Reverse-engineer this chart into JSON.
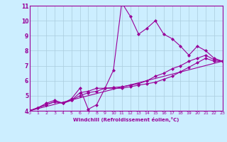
{
  "background_color": "#cceeff",
  "grid_color": "#aaccdd",
  "line_color": "#990099",
  "marker": "D",
  "markersize": 2,
  "linewidth": 0.8,
  "xlabel": "Windchill (Refroidissement éolien,°C)",
  "xlim": [
    0,
    23
  ],
  "ylim": [
    4,
    11
  ],
  "yticks": [
    4,
    5,
    6,
    7,
    8,
    9,
    10,
    11
  ],
  "xticks": [
    0,
    1,
    2,
    3,
    4,
    5,
    6,
    7,
    8,
    9,
    10,
    11,
    12,
    13,
    14,
    15,
    16,
    17,
    18,
    19,
    20,
    21,
    22,
    23
  ],
  "series": [
    {
      "x": [
        0,
        1,
        2,
        3,
        4,
        5,
        6,
        7,
        8,
        9,
        10,
        11,
        12,
        13,
        14,
        15,
        16,
        17,
        18,
        19,
        20,
        21,
        22,
        23
      ],
      "y": [
        4.0,
        4.2,
        4.5,
        4.7,
        4.5,
        4.8,
        5.5,
        4.1,
        4.4,
        5.5,
        6.7,
        11.2,
        10.3,
        9.1,
        9.5,
        10.0,
        9.1,
        8.8,
        8.3,
        7.7,
        8.3,
        8.0,
        7.5,
        7.3
      ]
    },
    {
      "x": [
        0,
        1,
        2,
        3,
        4,
        5,
        6,
        7,
        8,
        9,
        10,
        11,
        12,
        13,
        14,
        15,
        16,
        17,
        18,
        19,
        20,
        21,
        22,
        23
      ],
      "y": [
        4.0,
        4.2,
        4.4,
        4.6,
        4.5,
        4.7,
        5.2,
        5.3,
        5.5,
        5.5,
        5.55,
        5.6,
        5.7,
        5.8,
        6.0,
        6.3,
        6.5,
        6.8,
        7.0,
        7.3,
        7.5,
        7.7,
        7.4,
        7.3
      ]
    },
    {
      "x": [
        0,
        1,
        2,
        3,
        4,
        5,
        6,
        7,
        8,
        9,
        10,
        11,
        12,
        13,
        14,
        15,
        16,
        17,
        18,
        19,
        20,
        21,
        22,
        23
      ],
      "y": [
        4.0,
        4.2,
        4.4,
        4.6,
        4.5,
        4.7,
        5.0,
        5.2,
        5.3,
        5.5,
        5.5,
        5.5,
        5.6,
        5.7,
        5.8,
        5.9,
        6.1,
        6.3,
        6.6,
        6.9,
        7.2,
        7.5,
        7.3,
        7.3
      ]
    },
    {
      "x": [
        0,
        23
      ],
      "y": [
        4.0,
        7.3
      ]
    }
  ]
}
